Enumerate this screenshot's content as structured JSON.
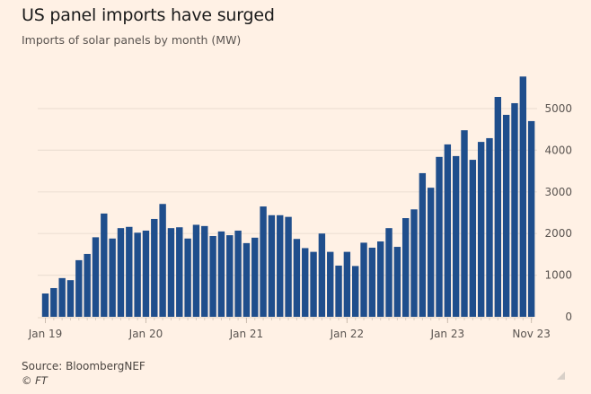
{
  "header": {
    "title": "US panel imports have surged",
    "subtitle": "Imports of solar panels by month (MW)"
  },
  "footer": {
    "source": "Source: BloombergNEF",
    "credit": "© FT"
  },
  "colors": {
    "background": "#FFF1E5",
    "bar": "#1F4E8C",
    "gridline": "#EDE0D4",
    "text": "#5a5450"
  },
  "chart_data": {
    "type": "bar",
    "title": "US panel imports have surged",
    "subtitle": "Imports of solar panels by month (MW)",
    "xlabel": "",
    "ylabel": "MW",
    "ylim": [
      0,
      6000
    ],
    "yticks": [
      0,
      1000,
      2000,
      3000,
      4000,
      5000
    ],
    "ytick_labels": [
      "0",
      "1000",
      "2000",
      "3000",
      "4000",
      "5000"
    ],
    "y_axis_side": "right",
    "grid": true,
    "legend": "none",
    "xtick_labels": [
      {
        "index": 0,
        "label": "Jan 19"
      },
      {
        "index": 12,
        "label": "Jan 20"
      },
      {
        "index": 24,
        "label": "Jan 21"
      },
      {
        "index": 36,
        "label": "Jan 22"
      },
      {
        "index": 48,
        "label": "Jan 23"
      },
      {
        "index": 58,
        "label": "Nov 23"
      }
    ],
    "categories": [
      "Jan 19",
      "Feb 19",
      "Mar 19",
      "Apr 19",
      "May 19",
      "Jun 19",
      "Jul 19",
      "Aug 19",
      "Sep 19",
      "Oct 19",
      "Nov 19",
      "Dec 19",
      "Jan 20",
      "Feb 20",
      "Mar 20",
      "Apr 20",
      "May 20",
      "Jun 20",
      "Jul 20",
      "Aug 20",
      "Sep 20",
      "Oct 20",
      "Nov 20",
      "Dec 20",
      "Jan 21",
      "Feb 21",
      "Mar 21",
      "Apr 21",
      "May 21",
      "Jun 21",
      "Jul 21",
      "Aug 21",
      "Sep 21",
      "Oct 21",
      "Nov 21",
      "Dec 21",
      "Jan 22",
      "Feb 22",
      "Mar 22",
      "Apr 22",
      "May 22",
      "Jun 22",
      "Jul 22",
      "Aug 22",
      "Sep 22",
      "Oct 22",
      "Nov 22",
      "Dec 22",
      "Jan 23",
      "Feb 23",
      "Mar 23",
      "Apr 23",
      "May 23",
      "Jun 23",
      "Jul 23",
      "Aug 23",
      "Sep 23",
      "Oct 23",
      "Nov 23"
    ],
    "values": [
      560,
      690,
      930,
      880,
      1360,
      1510,
      1910,
      2480,
      1880,
      2130,
      2160,
      2020,
      2070,
      2350,
      2710,
      2130,
      2150,
      1880,
      2210,
      2180,
      1940,
      2050,
      1960,
      2070,
      1770,
      1900,
      2650,
      2440,
      2440,
      2400,
      1870,
      1650,
      1560,
      2000,
      1560,
      1230,
      1560,
      1220,
      1780,
      1660,
      1810,
      2130,
      1680,
      2370,
      2580,
      3450,
      3100,
      3840,
      4140,
      3860,
      4480,
      3770,
      4200,
      4290,
      5280,
      4850,
      5130,
      5770,
      4700
    ]
  }
}
